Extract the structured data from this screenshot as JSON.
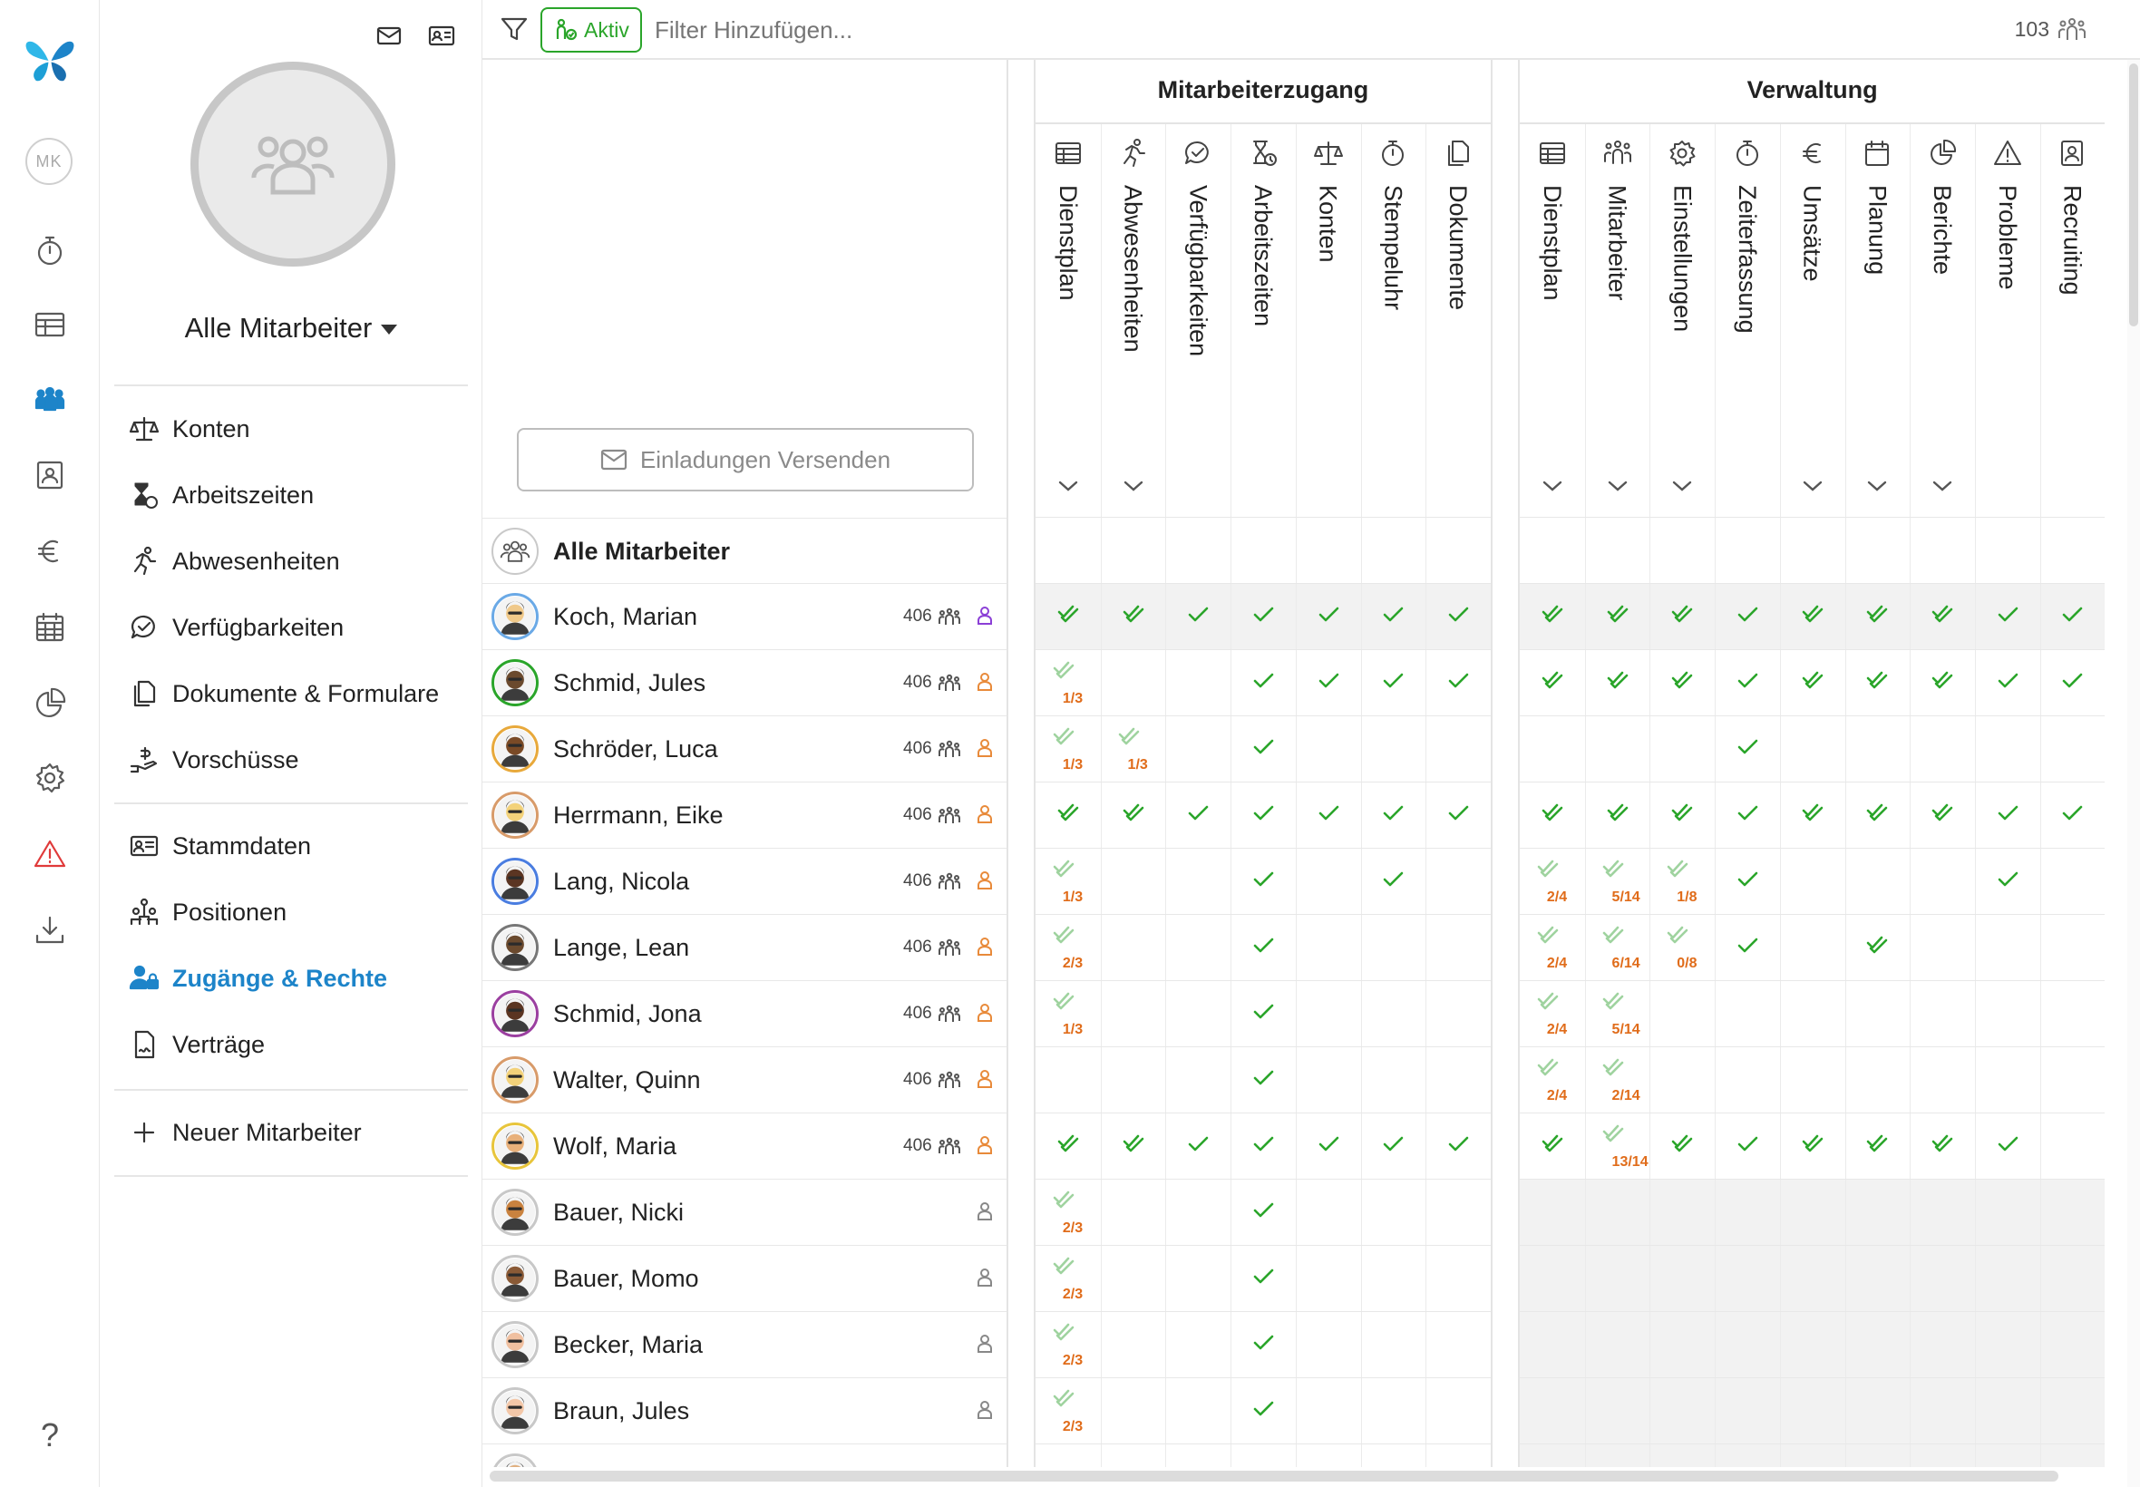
{
  "rail": {
    "user_initials": "MK",
    "items": [
      {
        "name": "stopwatch-icon"
      },
      {
        "name": "table-icon"
      },
      {
        "name": "team-icon",
        "active": true
      },
      {
        "name": "contact-card-icon"
      },
      {
        "name": "euro-icon"
      },
      {
        "name": "calendar-icon"
      },
      {
        "name": "pie-chart-icon"
      },
      {
        "name": "gear-icon"
      },
      {
        "name": "warning-icon"
      },
      {
        "name": "download-icon"
      }
    ],
    "help_label": "?"
  },
  "sidebar": {
    "group_title": "Alle Mitarbeiter",
    "nav": [
      {
        "label": "Konten",
        "icon": "scale-icon"
      },
      {
        "label": "Arbeitszeiten",
        "icon": "hourglass-icon"
      },
      {
        "label": "Abwesenheiten",
        "icon": "running-person-icon"
      },
      {
        "label": "Verfügbarkeiten",
        "icon": "chat-check-icon"
      },
      {
        "label": "Dokumente & Formulare",
        "icon": "documents-icon"
      },
      {
        "label": "Vorschüsse",
        "icon": "hand-money-icon"
      },
      {
        "label": "Stammdaten",
        "icon": "id-card-icon"
      },
      {
        "label": "Positionen",
        "icon": "positions-icon"
      },
      {
        "label": "Zugänge & Rechte",
        "icon": "user-lock-icon",
        "active": true
      },
      {
        "label": "Verträge",
        "icon": "contract-icon"
      },
      {
        "label": "Neuer Mitarbeiter",
        "icon": "plus-icon"
      }
    ]
  },
  "toolbar": {
    "status_chip": "Aktiv",
    "filter_placeholder": "Filter Hinzufügen...",
    "employee_count": "103"
  },
  "invite_button": "Einladungen Versenden",
  "all_row_label": "Alle Mitarbeiter",
  "colors": {
    "accent": "#1d84c9",
    "check_green": "#2aa52a",
    "fraction_orange": "#e06c1a",
    "admin_purple": "#8b3fd6"
  },
  "sections": [
    {
      "title": "Mitarbeiterzugang",
      "columns": [
        {
          "label": "Dienstplan",
          "icon": "table-icon",
          "chevron": true
        },
        {
          "label": "Abwesenheiten",
          "icon": "running-person-icon",
          "chevron": true
        },
        {
          "label": "Verfügbarkeiten",
          "icon": "chat-check-icon",
          "chevron": false
        },
        {
          "label": "Arbeitszeiten",
          "icon": "hourglass-icon",
          "chevron": false
        },
        {
          "label": "Konten",
          "icon": "scale-icon",
          "chevron": false
        },
        {
          "label": "Stempeluhr",
          "icon": "stopwatch-icon",
          "chevron": false
        },
        {
          "label": "Dokumente",
          "icon": "documents-icon",
          "chevron": false
        }
      ]
    },
    {
      "title": "Verwaltung",
      "columns": [
        {
          "label": "Dienstplan",
          "icon": "table-icon",
          "chevron": true
        },
        {
          "label": "Mitarbeiter",
          "icon": "team-icon",
          "chevron": true
        },
        {
          "label": "Einstellungen",
          "icon": "gear-icon",
          "chevron": true
        },
        {
          "label": "Zeiterfassung",
          "icon": "stopwatch-icon",
          "chevron": false
        },
        {
          "label": "Umsätze",
          "icon": "euro-icon",
          "chevron": true
        },
        {
          "label": "Planung",
          "icon": "calendar-icon",
          "chevron": true
        },
        {
          "label": "Berichte",
          "icon": "pie-chart-icon",
          "chevron": true
        },
        {
          "label": "Probleme",
          "icon": "warning-icon",
          "chevron": false
        },
        {
          "label": "Recruiting",
          "icon": "contact-card-icon",
          "chevron": false
        }
      ]
    }
  ],
  "employees": [
    {
      "name": "Koch, Marian",
      "code": "406",
      "role": "admin",
      "ring": "#6aa9e6",
      "face": "#f0c98a",
      "highlight": true,
      "ma": [
        "D",
        "D",
        "S",
        "S",
        "S",
        "S",
        "S"
      ],
      "vw": [
        "D",
        "D",
        "D",
        "S",
        "D",
        "D",
        "D",
        "S",
        "S"
      ]
    },
    {
      "name": "Schmid, Jules",
      "code": "406",
      "role": "manager",
      "ring": "#2aa52a",
      "face": "#6b4a2e",
      "ma": [
        "1/3",
        "",
        "",
        "S",
        "S",
        "S",
        "S"
      ],
      "vw": [
        "D",
        "D",
        "D",
        "S",
        "D",
        "D",
        "D",
        "S",
        "S"
      ]
    },
    {
      "name": "Schröder, Luca",
      "code": "406",
      "role": "manager",
      "ring": "#e8a93b",
      "face": "#7a4a26",
      "ma": [
        "1/3",
        "1/3",
        "",
        "S",
        "",
        "",
        ""
      ],
      "vw": [
        "",
        "",
        "",
        "S",
        "",
        "",
        "",
        "",
        ""
      ]
    },
    {
      "name": "Herrmann, Eike",
      "code": "406",
      "role": "manager",
      "ring": "#d89b6a",
      "face": "#f3d27a",
      "ma": [
        "D",
        "D",
        "S",
        "S",
        "S",
        "S",
        "S"
      ],
      "vw": [
        "D",
        "D",
        "D",
        "S",
        "D",
        "D",
        "D",
        "S",
        "S"
      ]
    },
    {
      "name": "Lang, Nicola",
      "code": "406",
      "role": "manager",
      "ring": "#4a7de0",
      "face": "#5b3522",
      "ma": [
        "1/3",
        "",
        "",
        "S",
        "",
        "S",
        ""
      ],
      "vw": [
        "2/4",
        "5/14",
        "1/8",
        "S",
        "",
        "",
        "",
        "S",
        ""
      ]
    },
    {
      "name": "Lange, Lean",
      "code": "406",
      "role": "manager",
      "ring": "#777777",
      "face": "#6b4a2e",
      "ma": [
        "2/3",
        "",
        "",
        "S",
        "",
        "",
        ""
      ],
      "vw": [
        "2/4",
        "6/14",
        "0/8",
        "S",
        "",
        "D",
        "",
        "",
        ""
      ]
    },
    {
      "name": "Schmid, Jona",
      "code": "406",
      "role": "manager",
      "ring": "#9b3fa0",
      "face": "#5b3522",
      "ma": [
        "1/3",
        "",
        "",
        "S",
        "",
        "",
        ""
      ],
      "vw": [
        "2/4",
        "5/14",
        "",
        "",
        "",
        "",
        "",
        "",
        ""
      ]
    },
    {
      "name": "Walter, Quinn",
      "code": "406",
      "role": "manager",
      "ring": "#d89b6a",
      "face": "#f3d27a",
      "ma": [
        "",
        "",
        "",
        "S",
        "",
        "",
        ""
      ],
      "vw": [
        "2/4",
        "2/14",
        "",
        "",
        "",
        "",
        "",
        "",
        ""
      ]
    },
    {
      "name": "Wolf, Maria",
      "code": "406",
      "role": "manager",
      "ring": "#e8c53b",
      "face": "#e8b07a",
      "ma": [
        "D",
        "D",
        "S",
        "S",
        "S",
        "S",
        "S"
      ],
      "vw": [
        "D",
        "13/14",
        "D",
        "S",
        "D",
        "D",
        "D",
        "S",
        ""
      ]
    },
    {
      "name": "Bauer, Nicki",
      "code": "",
      "role": "employee",
      "ring": "#c8c8c8",
      "face": "#c9823f",
      "ma": [
        "2/3",
        "",
        "",
        "S",
        "",
        "",
        ""
      ],
      "vw": null
    },
    {
      "name": "Bauer, Momo",
      "code": "",
      "role": "employee",
      "ring": "#c8c8c8",
      "face": "#8a5a36",
      "ma": [
        "2/3",
        "",
        "",
        "S",
        "",
        "",
        ""
      ],
      "vw": null
    },
    {
      "name": "Becker, Maria",
      "code": "",
      "role": "employee",
      "ring": "#c8c8c8",
      "face": "#f0c0a0",
      "ma": [
        "2/3",
        "",
        "",
        "S",
        "",
        "",
        ""
      ],
      "vw": null
    },
    {
      "name": "Braun, Jules",
      "code": "",
      "role": "employee",
      "ring": "#c8c8c8",
      "face": "#f3c7a8",
      "ma": [
        "2/3",
        "",
        "",
        "S",
        "",
        "",
        ""
      ],
      "vw": null
    },
    {
      "name": "",
      "code": "",
      "role": "employee",
      "ring": "#c8c8c8",
      "face": "#e0b080",
      "ma": [
        "",
        "",
        "",
        "",
        "",
        "",
        ""
      ],
      "vw": null
    }
  ]
}
